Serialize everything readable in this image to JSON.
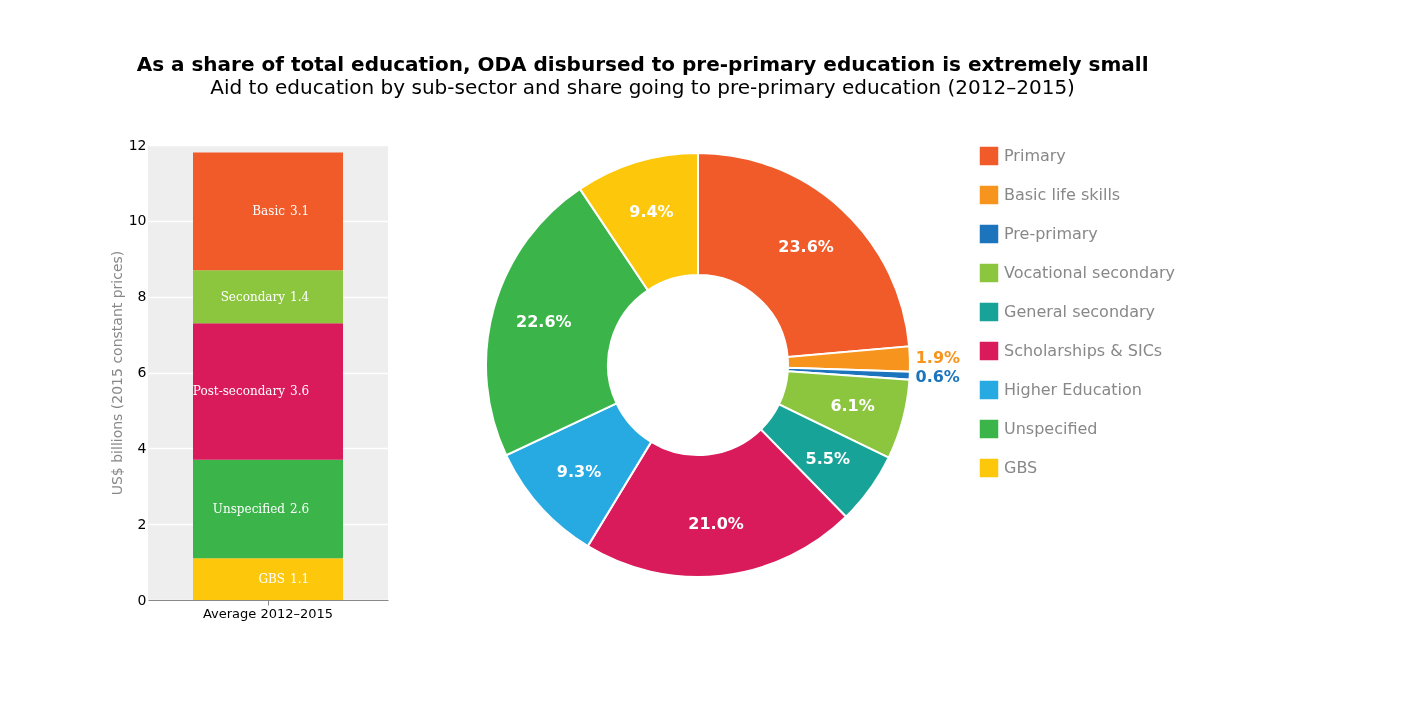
{
  "chart_data": [
    {
      "type": "bar",
      "title": "As a share of total education, ODA disbursed to pre-primary education is extremely small",
      "subtitle": "Aid to education by sub-sector and share going to pre-primary education (2012–2015)",
      "categories": [
        "Average 2012–2015"
      ],
      "stacked": true,
      "ylabel": "US$ billions (2015 constant prices)",
      "ylim": [
        0,
        12
      ],
      "yticks": [
        0,
        2,
        4,
        6,
        8,
        10,
        12
      ],
      "grid": "y",
      "data_labels": true,
      "series": [
        {
          "name": "GBS",
          "color": "#fdc70c",
          "values": [
            1.1
          ]
        },
        {
          "name": "Unspecified",
          "color": "#3bb54a",
          "values": [
            2.6
          ]
        },
        {
          "name": "Post-secondary",
          "color": "#d91b5b",
          "values": [
            3.6
          ]
        },
        {
          "name": "Secondary",
          "color": "#8cc63f",
          "values": [
            1.4
          ]
        },
        {
          "name": "Basic",
          "color": "#f15a29",
          "values": [
            3.1
          ]
        }
      ]
    },
    {
      "type": "donut",
      "legend": "right",
      "categories": [
        "Primary",
        "Basic life skills",
        "Pre-primary",
        "Vocational secondary",
        "General secondary",
        "Scholarships & SICs",
        "Higher Education",
        "Unspecified",
        "GBS"
      ],
      "values": [
        23.6,
        1.9,
        0.6,
        6.1,
        5.5,
        21.0,
        9.3,
        22.6,
        9.4
      ],
      "value_labels": [
        "23.6%",
        "1.9%",
        "0.6%",
        "6.1%",
        "5.5%",
        "21.0%",
        "9.3%",
        "22.6%",
        "9.4%"
      ],
      "colors": [
        "#f15a29",
        "#f7941d",
        "#1c75bc",
        "#8cc63f",
        "#17a398",
        "#d91b5b",
        "#27aae1",
        "#3bb54a",
        "#fdc70c"
      ]
    }
  ]
}
